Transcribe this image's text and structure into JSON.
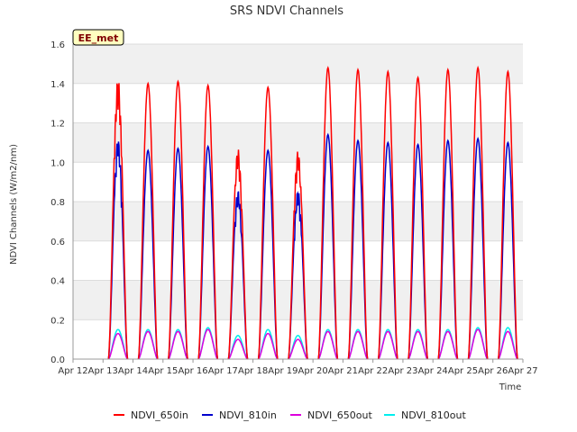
{
  "chart_data": {
    "type": "line",
    "title": "SRS NDVI Channels",
    "ylabel": "NDVI Channels (W/m2/nm)",
    "xlabel": "Time",
    "site_badge": "EE_met",
    "x_ticks": [
      "Apr 12",
      "Apr 13",
      "Apr 14",
      "Apr 15",
      "Apr 16",
      "Apr 17",
      "Apr 18",
      "Apr 19",
      "Apr 20",
      "Apr 21",
      "Apr 22",
      "Apr 23",
      "Apr 24",
      "Apr 25",
      "Apr 26",
      "Apr 27"
    ],
    "y_ticks": [
      "0.0",
      "0.2",
      "0.4",
      "0.6",
      "0.8",
      "1.0",
      "1.2",
      "1.4",
      "1.6"
    ],
    "ylim": [
      0,
      1.6
    ],
    "xlim_days": [
      "Apr 12",
      "Apr 27"
    ],
    "grid": true,
    "background_bands": true,
    "legend_position": "bottom",
    "day_peaks": {
      "days": [
        "Apr 13",
        "Apr 14",
        "Apr 15",
        "Apr 16",
        "Apr 17",
        "Apr 18",
        "Apr 19",
        "Apr 20",
        "Apr 21",
        "Apr 22",
        "Apr 23",
        "Apr 24",
        "Apr 25",
        "Apr 26"
      ],
      "series": [
        {
          "name": "NDVI_650in",
          "color": "#ff0000",
          "values": [
            1.43,
            1.4,
            1.41,
            1.39,
            1.07,
            1.38,
            1.06,
            1.48,
            1.47,
            1.46,
            1.43,
            1.47,
            1.48,
            1.46
          ]
        },
        {
          "name": "NDVI_810in",
          "color": "#0000cc",
          "values": [
            1.12,
            1.06,
            1.07,
            1.08,
            0.86,
            1.06,
            0.86,
            1.14,
            1.11,
            1.1,
            1.09,
            1.11,
            1.12,
            1.1
          ]
        },
        {
          "name": "NDVI_650out",
          "color": "#dd00dd",
          "values": [
            0.13,
            0.14,
            0.14,
            0.15,
            0.1,
            0.13,
            0.1,
            0.14,
            0.14,
            0.14,
            0.14,
            0.14,
            0.15,
            0.14
          ]
        },
        {
          "name": "NDVI_810out",
          "color": "#00eeee",
          "values": [
            0.15,
            0.15,
            0.15,
            0.16,
            0.12,
            0.15,
            0.12,
            0.15,
            0.15,
            0.15,
            0.15,
            0.15,
            0.16,
            0.16
          ]
        }
      ]
    }
  }
}
